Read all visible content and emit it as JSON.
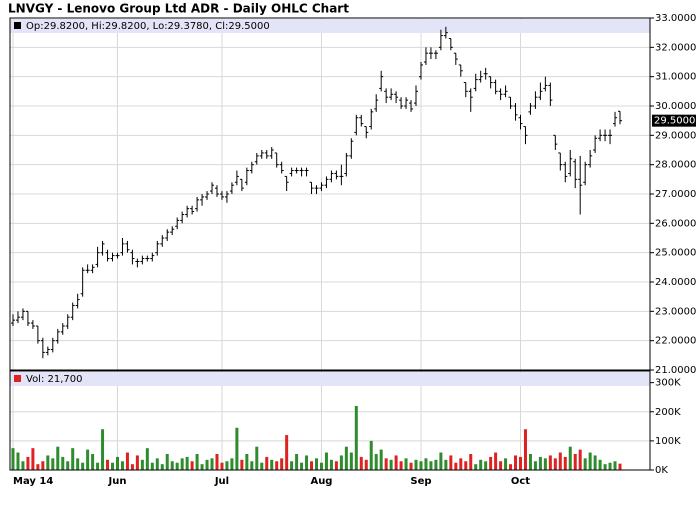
{
  "chart_data": {
    "type": "ohlc",
    "title": "LNVGY - Lenovo Group Ltd ADR - Daily OHLC Chart",
    "info": "Op:29.8200, Hi:29.8200, Lo:29.3780, Cl:29.5000",
    "last_label": "29.5000",
    "volume_info": "Vol: 21,700",
    "bar_color": "#000000",
    "up_color": "#2e8b2e",
    "down_color": "#dd2222",
    "strip_color": "#e4e4f8",
    "grid": true,
    "ylim": [
      21,
      33
    ],
    "yticks": [
      {
        "value": 21,
        "label": "21.0000"
      },
      {
        "value": 22,
        "label": "22.0000"
      },
      {
        "value": 23,
        "label": "23.0000"
      },
      {
        "value": 24,
        "label": "24.0000"
      },
      {
        "value": 25,
        "label": "25.0000"
      },
      {
        "value": 26,
        "label": "26.0000"
      },
      {
        "value": 27,
        "label": "27.0000"
      },
      {
        "value": 28,
        "label": "28.0000"
      },
      {
        "value": 29,
        "label": "29.0000"
      },
      {
        "value": 30,
        "label": "30.0000"
      },
      {
        "value": 31,
        "label": "31.0000"
      },
      {
        "value": 32,
        "label": "32.0000"
      },
      {
        "value": 33,
        "label": "33.0000"
      }
    ],
    "vlim": [
      0,
      340000
    ],
    "vticks": [
      {
        "value": 0,
        "label": "0K"
      },
      {
        "value": 100000,
        "label": "100K"
      },
      {
        "value": 200000,
        "label": "200K"
      },
      {
        "value": 300000,
        "label": "300K"
      }
    ],
    "categories": [
      "May 14",
      null,
      null,
      null,
      null,
      null,
      null,
      null,
      null,
      null,
      null,
      null,
      null,
      null,
      null,
      null,
      null,
      null,
      null,
      null,
      null,
      "Jun",
      null,
      null,
      null,
      null,
      null,
      null,
      null,
      null,
      null,
      null,
      null,
      null,
      null,
      null,
      null,
      null,
      null,
      null,
      null,
      null,
      "Jul",
      null,
      null,
      null,
      null,
      null,
      null,
      null,
      null,
      null,
      null,
      null,
      null,
      null,
      null,
      null,
      null,
      null,
      null,
      null,
      "Aug",
      null,
      null,
      null,
      null,
      null,
      null,
      null,
      null,
      null,
      null,
      null,
      null,
      null,
      null,
      null,
      null,
      null,
      null,
      null,
      "Sep",
      null,
      null,
      null,
      null,
      null,
      null,
      null,
      null,
      null,
      null,
      null,
      null,
      null,
      null,
      null,
      null,
      null,
      null,
      null,
      "Oct",
      null,
      null,
      null,
      null,
      null,
      null,
      null,
      null,
      null,
      null,
      null,
      null,
      null,
      null,
      null,
      null,
      null,
      null,
      null,
      null
    ],
    "ohlc": [
      [
        22.6,
        22.9,
        22.5,
        22.7
      ],
      [
        22.7,
        23.0,
        22.6,
        22.8
      ],
      [
        22.8,
        23.1,
        22.7,
        23.0
      ],
      [
        23.0,
        23.0,
        22.5,
        22.6
      ],
      [
        22.6,
        22.7,
        22.4,
        22.5
      ],
      [
        22.5,
        22.5,
        21.9,
        22.0
      ],
      [
        22.0,
        22.1,
        21.4,
        21.6
      ],
      [
        21.6,
        21.8,
        21.5,
        21.7
      ],
      [
        21.7,
        22.1,
        21.6,
        22.0
      ],
      [
        22.0,
        22.4,
        21.9,
        22.3
      ],
      [
        22.3,
        22.6,
        22.2,
        22.5
      ],
      [
        22.5,
        22.9,
        22.4,
        22.8
      ],
      [
        22.8,
        23.3,
        22.7,
        23.2
      ],
      [
        23.2,
        23.6,
        23.1,
        23.4
      ],
      [
        23.6,
        24.5,
        23.5,
        24.4
      ],
      [
        24.4,
        24.6,
        24.3,
        24.4
      ],
      [
        24.4,
        24.6,
        24.3,
        24.5
      ],
      [
        24.6,
        25.2,
        24.5,
        25.0
      ],
      [
        25.0,
        25.4,
        24.9,
        25.3
      ],
      [
        25.0,
        25.1,
        24.7,
        24.8
      ],
      [
        24.8,
        25.0,
        24.7,
        24.9
      ],
      [
        24.9,
        25.0,
        24.8,
        24.9
      ],
      [
        25.0,
        25.5,
        24.9,
        25.3
      ],
      [
        25.3,
        25.4,
        25.0,
        25.1
      ],
      [
        25.0,
        25.1,
        24.6,
        24.8
      ],
      [
        24.7,
        24.8,
        24.5,
        24.7
      ],
      [
        24.7,
        24.9,
        24.6,
        24.8
      ],
      [
        24.8,
        24.9,
        24.7,
        24.8
      ],
      [
        24.8,
        25.0,
        24.7,
        24.9
      ],
      [
        25.0,
        25.4,
        24.9,
        25.3
      ],
      [
        25.3,
        25.6,
        25.2,
        25.5
      ],
      [
        25.5,
        25.8,
        25.4,
        25.7
      ],
      [
        25.7,
        25.9,
        25.6,
        25.8
      ],
      [
        25.9,
        26.2,
        25.8,
        26.1
      ],
      [
        26.1,
        26.4,
        26.0,
        26.3
      ],
      [
        26.3,
        26.6,
        26.2,
        26.5
      ],
      [
        26.5,
        26.6,
        26.3,
        26.4
      ],
      [
        26.5,
        26.9,
        26.4,
        26.8
      ],
      [
        26.8,
        27.0,
        26.6,
        26.9
      ],
      [
        26.9,
        27.1,
        26.8,
        27.0
      ],
      [
        27.1,
        27.4,
        27.0,
        27.3
      ],
      [
        27.2,
        27.3,
        26.9,
        27.0
      ],
      [
        27.0,
        27.1,
        26.8,
        26.9
      ],
      [
        26.9,
        27.1,
        26.7,
        27.0
      ],
      [
        27.1,
        27.4,
        27.0,
        27.3
      ],
      [
        27.4,
        27.8,
        27.3,
        27.6
      ],
      [
        27.5,
        27.5,
        27.1,
        27.2
      ],
      [
        27.4,
        27.9,
        27.3,
        27.8
      ],
      [
        27.8,
        28.1,
        27.7,
        28.0
      ],
      [
        28.1,
        28.4,
        28.0,
        28.3
      ],
      [
        28.3,
        28.5,
        28.2,
        28.4
      ],
      [
        28.4,
        28.5,
        28.2,
        28.3
      ],
      [
        28.3,
        28.6,
        28.2,
        28.5
      ],
      [
        28.4,
        28.4,
        27.9,
        28.0
      ],
      [
        28.0,
        28.1,
        27.7,
        27.8
      ],
      [
        27.6,
        27.6,
        27.1,
        27.4
      ],
      [
        27.7,
        27.9,
        27.6,
        27.8
      ],
      [
        27.8,
        27.9,
        27.7,
        27.8
      ],
      [
        27.8,
        27.9,
        27.6,
        27.8
      ],
      [
        27.8,
        27.9,
        27.6,
        27.8
      ],
      [
        27.4,
        27.4,
        27.0,
        27.2
      ],
      [
        27.2,
        27.3,
        27.0,
        27.2
      ],
      [
        27.2,
        27.4,
        27.1,
        27.3
      ],
      [
        27.3,
        27.6,
        27.2,
        27.5
      ],
      [
        27.5,
        27.8,
        27.4,
        27.7
      ],
      [
        27.7,
        27.8,
        27.5,
        27.6
      ],
      [
        27.6,
        28.0,
        27.3,
        27.6
      ],
      [
        27.7,
        28.4,
        27.6,
        28.3
      ],
      [
        28.3,
        28.9,
        28.2,
        28.8
      ],
      [
        29.1,
        29.7,
        29.0,
        29.6
      ],
      [
        29.6,
        29.7,
        29.3,
        29.4
      ],
      [
        29.3,
        29.3,
        28.9,
        29.1
      ],
      [
        29.3,
        29.9,
        29.2,
        29.8
      ],
      [
        29.9,
        30.4,
        29.8,
        30.2
      ],
      [
        30.6,
        31.2,
        30.5,
        31.0
      ],
      [
        30.5,
        30.6,
        30.1,
        30.3
      ],
      [
        30.3,
        30.6,
        30.2,
        30.4
      ],
      [
        30.4,
        30.5,
        30.1,
        30.3
      ],
      [
        30.2,
        30.3,
        29.9,
        30.0
      ],
      [
        30.0,
        30.3,
        29.9,
        30.2
      ],
      [
        30.1,
        30.2,
        29.8,
        29.9
      ],
      [
        30.1,
        30.7,
        30.0,
        30.5
      ],
      [
        31.0,
        31.5,
        30.9,
        31.4
      ],
      [
        31.5,
        32.0,
        31.4,
        31.8
      ],
      [
        31.8,
        32.0,
        31.6,
        31.8
      ],
      [
        31.8,
        31.9,
        31.6,
        31.8
      ],
      [
        32.0,
        32.6,
        31.9,
        32.4
      ],
      [
        32.4,
        32.7,
        32.3,
        32.5
      ],
      [
        32.3,
        32.3,
        31.9,
        32.0
      ],
      [
        31.8,
        31.8,
        31.4,
        31.6
      ],
      [
        31.4,
        31.4,
        31.0,
        31.2
      ],
      [
        30.8,
        30.8,
        30.3,
        30.5
      ],
      [
        30.5,
        30.6,
        29.8,
        30.3
      ],
      [
        30.6,
        31.1,
        30.5,
        30.9
      ],
      [
        30.9,
        31.2,
        30.8,
        31.0
      ],
      [
        31.1,
        31.3,
        30.9,
        31.1
      ],
      [
        31.0,
        31.0,
        30.6,
        30.8
      ],
      [
        30.8,
        30.9,
        30.4,
        30.5
      ],
      [
        30.5,
        30.6,
        30.2,
        30.4
      ],
      [
        30.4,
        30.7,
        30.3,
        30.5
      ],
      [
        30.3,
        30.3,
        29.9,
        30.0
      ],
      [
        30.0,
        30.1,
        29.5,
        29.7
      ],
      [
        29.6,
        29.7,
        29.2,
        29.4
      ],
      [
        29.3,
        29.3,
        28.7,
        29.0
      ],
      [
        29.8,
        30.1,
        29.7,
        30.0
      ],
      [
        30.0,
        30.5,
        29.9,
        30.3
      ],
      [
        30.3,
        30.8,
        30.2,
        30.5
      ],
      [
        30.6,
        31.0,
        30.5,
        30.7
      ],
      [
        30.7,
        30.8,
        30.0,
        30.2
      ],
      [
        29.0,
        29.0,
        28.5,
        28.7
      ],
      [
        28.4,
        28.4,
        27.8,
        28.0
      ],
      [
        28.0,
        28.1,
        27.4,
        27.6
      ],
      [
        27.7,
        28.5,
        27.6,
        28.2
      ],
      [
        28.1,
        28.2,
        27.2,
        27.5
      ],
      [
        27.5,
        28.3,
        26.3,
        27.3
      ],
      [
        27.4,
        28.1,
        27.3,
        28.0
      ],
      [
        28.0,
        28.5,
        27.9,
        28.3
      ],
      [
        28.5,
        29.0,
        28.4,
        28.9
      ],
      [
        28.9,
        29.2,
        28.8,
        29.0
      ],
      [
        29.0,
        29.2,
        28.8,
        29.0
      ],
      [
        29.0,
        29.2,
        28.7,
        29.0
      ],
      [
        29.4,
        29.8,
        29.3,
        29.6
      ],
      [
        29.82,
        29.82,
        29.378,
        29.5
      ]
    ],
    "volume": [
      75000,
      60000,
      30000,
      45000,
      75000,
      20000,
      30000,
      50000,
      40000,
      80000,
      45000,
      30000,
      75000,
      40000,
      25000,
      70000,
      55000,
      25000,
      140000,
      35000,
      25000,
      45000,
      30000,
      60000,
      20000,
      50000,
      35000,
      75000,
      25000,
      40000,
      20000,
      55000,
      30000,
      25000,
      40000,
      45000,
      30000,
      55000,
      20000,
      35000,
      40000,
      55000,
      25000,
      30000,
      40000,
      145000,
      35000,
      55000,
      30000,
      80000,
      25000,
      45000,
      35000,
      30000,
      40000,
      120000,
      30000,
      55000,
      25000,
      50000,
      30000,
      40000,
      25000,
      60000,
      35000,
      30000,
      50000,
      80000,
      60000,
      220000,
      45000,
      35000,
      100000,
      55000,
      70000,
      40000,
      35000,
      50000,
      30000,
      40000,
      25000,
      35000,
      30000,
      40000,
      30000,
      35000,
      60000,
      35000,
      50000,
      25000,
      40000,
      30000,
      55000,
      20000,
      35000,
      30000,
      45000,
      60000,
      30000,
      40000,
      20000,
      50000,
      45000,
      140000,
      55000,
      30000,
      45000,
      40000,
      50000,
      40000,
      60000,
      45000,
      80000,
      55000,
      70000,
      40000,
      60000,
      50000,
      35000,
      20000,
      25000,
      30000,
      21700
    ]
  }
}
